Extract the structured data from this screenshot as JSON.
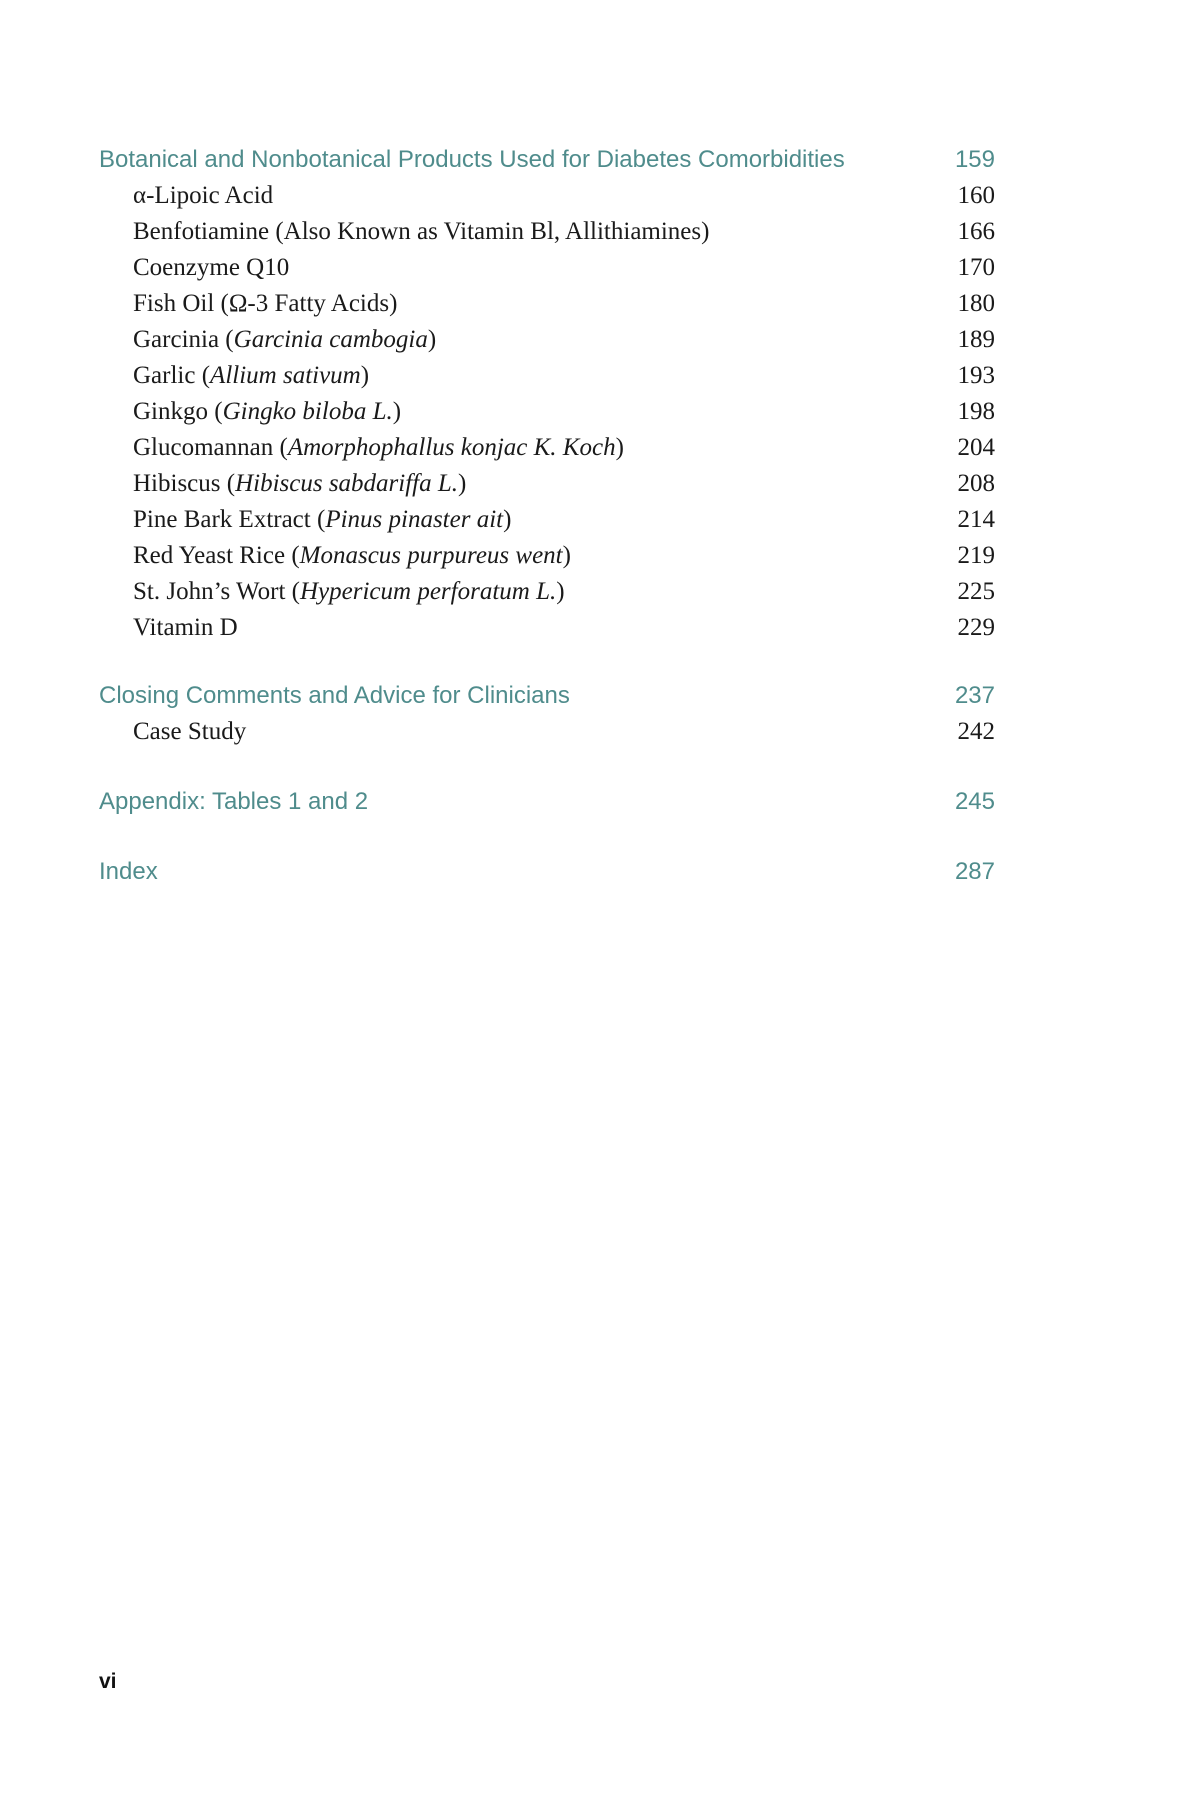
{
  "sections": [
    {
      "title": "Botanical and Nonbotanical Products Used for Diabetes Comorbidities",
      "page": "159",
      "items": [
        {
          "text": "α-Lipoic Acid",
          "italic": "",
          "suffix": "",
          "page": "160"
        },
        {
          "text": "Benfotiamine (Also Known as Vitamin Bl, Allithiamines)",
          "italic": "",
          "suffix": "",
          "page": "166"
        },
        {
          "text": "Coenzyme Q10",
          "italic": "",
          "suffix": "",
          "page": "170"
        },
        {
          "text": "Fish Oil (Ω-3 Fatty Acids)",
          "italic": "",
          "suffix": "",
          "page": "180"
        },
        {
          "text": "Garcinia (",
          "italic": "Garcinia cambogia",
          "suffix": ")",
          "page": "189"
        },
        {
          "text": "Garlic (",
          "italic": "Allium sativum",
          "suffix": ")",
          "page": "193"
        },
        {
          "text": "Ginkgo (",
          "italic": "Gingko biloba L.",
          "suffix": ")",
          "page": "198"
        },
        {
          "text": "Glucomannan (",
          "italic": "Amorphophallus konjac K. Koch",
          "suffix": ")",
          "page": "204"
        },
        {
          "text": "Hibiscus (",
          "italic": "Hibiscus sabdariffa L.",
          "suffix": ")",
          "page": "208"
        },
        {
          "text": "Pine Bark Extract (",
          "italic": "Pinus pinaster ait",
          "suffix": ")",
          "page": "214"
        },
        {
          "text": "Red Yeast Rice (",
          "italic": "Monascus purpureus went",
          "suffix": ")",
          "page": "219"
        },
        {
          "text": "St. John’s Wort (",
          "italic": "Hypericum perforatum L.",
          "suffix": ")",
          "page": "225"
        },
        {
          "text": "Vitamin D",
          "italic": "",
          "suffix": "",
          "page": "229"
        }
      ]
    },
    {
      "title": "Closing Comments and Advice for Clinicians",
      "page": "237",
      "items": [
        {
          "text": "Case Study",
          "italic": "",
          "suffix": "",
          "page": "242"
        }
      ]
    },
    {
      "title": "Appendix: Tables 1 and 2",
      "page": "245",
      "items": []
    },
    {
      "title": "Index",
      "page": "287",
      "items": []
    }
  ],
  "folio": "vi",
  "colors": {
    "heading": "#4f8c8c",
    "body": "#1a1a1a"
  }
}
